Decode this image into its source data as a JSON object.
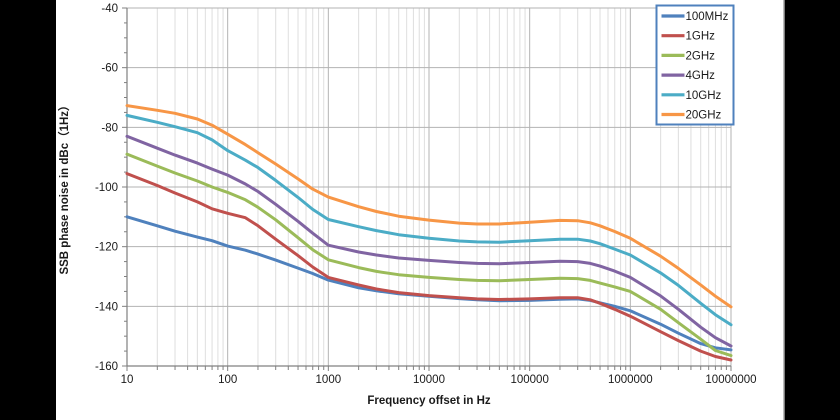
{
  "chart_data": {
    "type": "line",
    "title": "",
    "xlabel": "Frequency offset in Hz",
    "ylabel": "SSB phase noise in dBc（1Hz）",
    "x_scale": "log",
    "xlim": [
      10,
      10000000
    ],
    "ylim": [
      -160,
      -40
    ],
    "y_ticks": [
      -40,
      -60,
      -80,
      -100,
      -120,
      -140,
      -160
    ],
    "y_minor_step": 5,
    "x_major_ticks": [
      10,
      100,
      1000,
      10000,
      100000,
      1000000,
      10000000
    ],
    "x_tick_labels": [
      "10",
      "100",
      "1000",
      "10000",
      "100000",
      "1000000",
      "10000000"
    ],
    "grid": {
      "h_major": true,
      "v_major": true,
      "v_minor": true,
      "h_minor": false
    },
    "legend": {
      "position": "top-right-inside",
      "border_color": "#4F81BD"
    },
    "x": [
      10,
      20,
      30,
      50,
      70,
      100,
      150,
      200,
      300,
      500,
      700,
      1000,
      2000,
      3000,
      5000,
      10000,
      20000,
      30000,
      50000,
      100000,
      200000,
      300000,
      400000,
      500000,
      700000,
      1000000,
      2000000,
      3000000,
      5000000,
      7000000,
      10000000
    ],
    "series": [
      {
        "name": "100MHz",
        "color": "#4F81BD",
        "values": [
          -110.0,
          -113.0,
          -114.8,
          -116.8,
          -118.0,
          -119.8,
          -121.2,
          -122.5,
          -124.5,
          -127.2,
          -129.0,
          -131.2,
          -133.8,
          -134.8,
          -135.8,
          -136.6,
          -137.4,
          -137.8,
          -138.1,
          -138.0,
          -137.6,
          -137.5,
          -138.0,
          -138.8,
          -140.0,
          -141.5,
          -146.0,
          -149.0,
          -152.5,
          -153.9,
          -154.6
        ]
      },
      {
        "name": "1GHz",
        "color": "#C0504D",
        "values": [
          -95.5,
          -99.5,
          -102.0,
          -105.0,
          -107.3,
          -108.8,
          -110.3,
          -113.0,
          -117.5,
          -123.0,
          -126.8,
          -130.3,
          -132.8,
          -134.2,
          -135.4,
          -136.4,
          -137.1,
          -137.5,
          -137.7,
          -137.5,
          -137.1,
          -137.1,
          -137.8,
          -139.0,
          -141.0,
          -143.3,
          -148.5,
          -151.5,
          -155.0,
          -156.8,
          -158.0
        ]
      },
      {
        "name": "2GHz",
        "color": "#9BBB59",
        "values": [
          -89.0,
          -93.0,
          -95.3,
          -98.0,
          -100.0,
          -101.8,
          -104.3,
          -106.8,
          -111.0,
          -117.0,
          -121.0,
          -124.4,
          -127.0,
          -128.3,
          -129.4,
          -130.3,
          -131.0,
          -131.3,
          -131.4,
          -131.0,
          -130.6,
          -130.7,
          -131.3,
          -132.2,
          -133.5,
          -135.0,
          -141.0,
          -145.5,
          -151.0,
          -154.8,
          -156.5
        ]
      },
      {
        "name": "4GHz",
        "color": "#8064A2",
        "values": [
          -83.0,
          -87.0,
          -89.3,
          -92.0,
          -94.0,
          -96.0,
          -99.0,
          -101.5,
          -105.8,
          -111.5,
          -115.5,
          -119.5,
          -121.8,
          -122.8,
          -123.8,
          -124.6,
          -125.3,
          -125.6,
          -125.7,
          -125.3,
          -124.9,
          -125.0,
          -125.6,
          -126.5,
          -128.2,
          -130.3,
          -136.5,
          -141.0,
          -147.0,
          -150.5,
          -153.3
        ]
      },
      {
        "name": "10GHz",
        "color": "#4BACC6",
        "values": [
          -76.0,
          -78.3,
          -79.8,
          -81.8,
          -84.2,
          -87.8,
          -91.0,
          -93.5,
          -97.8,
          -103.5,
          -107.5,
          -110.9,
          -113.3,
          -114.6,
          -116.0,
          -117.2,
          -118.1,
          -118.4,
          -118.5,
          -118.0,
          -117.5,
          -117.5,
          -118.1,
          -119.0,
          -120.8,
          -122.8,
          -128.8,
          -133.0,
          -139.0,
          -142.8,
          -146.2
        ]
      },
      {
        "name": "20GHz",
        "color": "#F79646",
        "values": [
          -72.7,
          -74.3,
          -75.3,
          -77.2,
          -79.3,
          -82.3,
          -85.8,
          -88.5,
          -92.3,
          -97.3,
          -100.7,
          -103.4,
          -106.6,
          -108.2,
          -109.8,
          -111.1,
          -112.1,
          -112.4,
          -112.4,
          -111.8,
          -111.2,
          -111.3,
          -112.0,
          -113.0,
          -114.9,
          -117.2,
          -123.2,
          -127.3,
          -132.8,
          -136.6,
          -140.2
        ]
      }
    ]
  },
  "colors": {
    "plot_bg": "#ffffff",
    "letterbox": "#000000",
    "grid_major": "#b3b3b3",
    "grid_minor": "#dedede",
    "axis": "#808080",
    "chart_right_edge": "#a6a6a6",
    "tick_text": "#1a1a1a"
  }
}
